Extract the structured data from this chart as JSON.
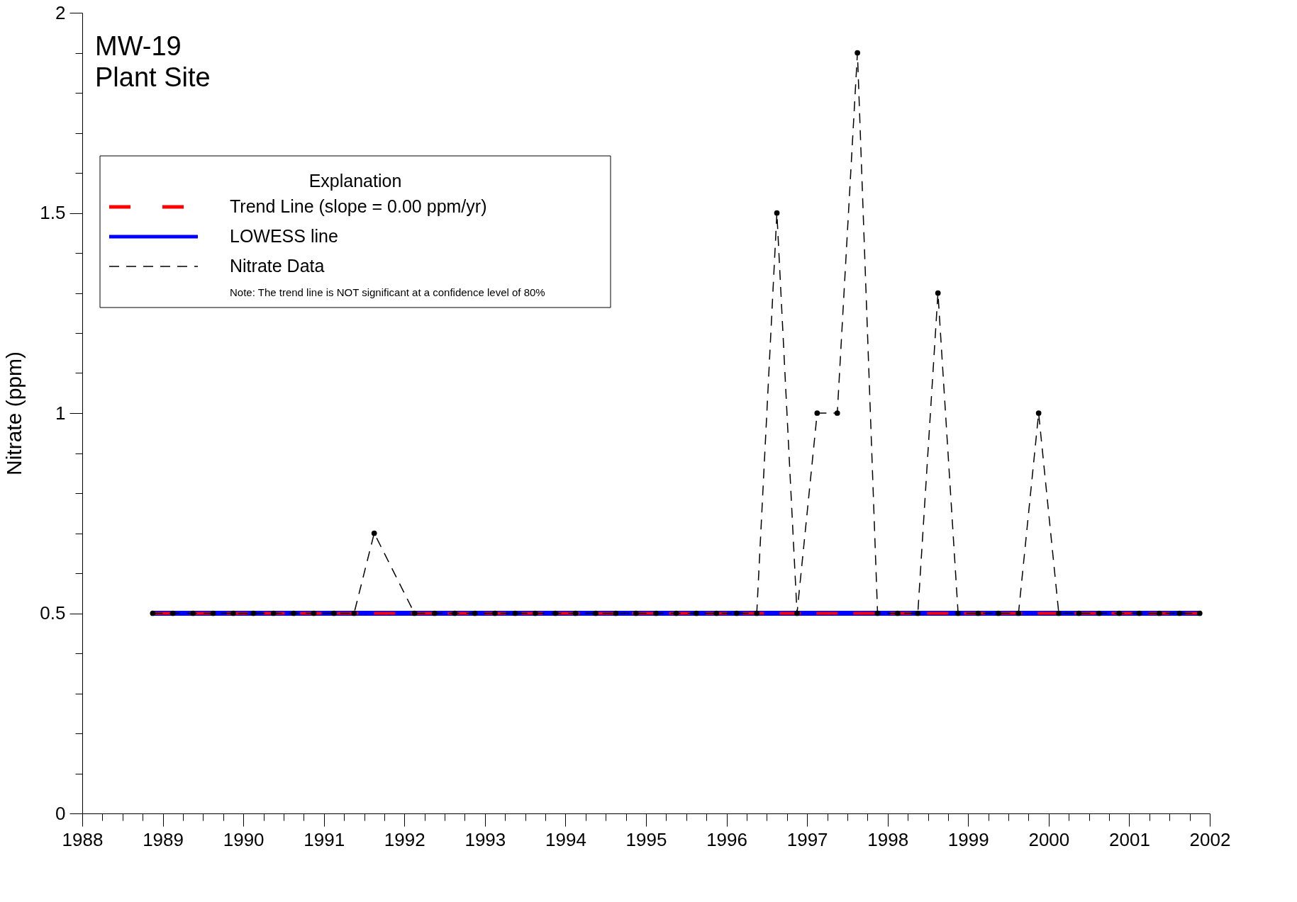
{
  "chart_data": {
    "type": "line",
    "title": "MW-19",
    "subtitle": "Plant Site",
    "ylabel": "Nitrate (ppm)",
    "legend_title": "Explanation",
    "annotations": [
      "Note: The trend line is NOT significant at a confidence level of 80%"
    ],
    "xlim": [
      1988,
      2002
    ],
    "ylim": [
      0,
      2
    ],
    "xticks": [
      1988,
      {
        "value": 1988.25,
        "label": null
      },
      {
        "value": 1988.5,
        "label": null
      },
      {
        "value": 1988.75,
        "label": null
      },
      1989,
      {
        "value": 1989.25,
        "label": null
      },
      {
        "value": 1989.5,
        "label": null
      },
      {
        "value": 1989.75,
        "label": null
      },
      1990,
      {
        "value": 1990.25,
        "label": null
      },
      {
        "value": 1990.5,
        "label": null
      },
      {
        "value": 1990.75,
        "label": null
      },
      1991,
      {
        "value": 1991.25,
        "label": null
      },
      {
        "value": 1991.5,
        "label": null
      },
      {
        "value": 1991.75,
        "label": null
      },
      1992,
      {
        "value": 1992.25,
        "label": null
      },
      {
        "value": 1992.5,
        "label": null
      },
      {
        "value": 1992.75,
        "label": null
      },
      1993,
      {
        "value": 1993.25,
        "label": null
      },
      {
        "value": 1993.5,
        "label": null
      },
      {
        "value": 1993.75,
        "label": null
      },
      1994,
      {
        "value": 1994.25,
        "label": null
      },
      {
        "value": 1994.5,
        "label": null
      },
      {
        "value": 1994.75,
        "label": null
      },
      1995,
      {
        "value": 1995.25,
        "label": null
      },
      {
        "value": 1995.5,
        "label": null
      },
      {
        "value": 1995.75,
        "label": null
      },
      1996,
      {
        "value": 1996.25,
        "label": null
      },
      {
        "value": 1996.5,
        "label": null
      },
      {
        "value": 1996.75,
        "label": null
      },
      1997,
      {
        "value": 1997.25,
        "label": null
      },
      {
        "value": 1997.5,
        "label": null
      },
      {
        "value": 1997.75,
        "label": null
      },
      1998,
      {
        "value": 1998.25,
        "label": null
      },
      {
        "value": 1998.5,
        "label": null
      },
      {
        "value": 1998.75,
        "label": null
      },
      1999,
      {
        "value": 1999.25,
        "label": null
      },
      {
        "value": 1999.5,
        "label": null
      },
      {
        "value": 1999.75,
        "label": null
      },
      2000,
      {
        "value": 2000.25,
        "label": null
      },
      {
        "value": 2000.5,
        "label": null
      },
      {
        "value": 2000.75,
        "label": null
      },
      2001,
      {
        "value": 2001.25,
        "label": null
      },
      {
        "value": 2001.5,
        "label": null
      },
      {
        "value": 2001.75,
        "label": null
      },
      2002
    ],
    "yticks": [
      0,
      {
        "value": 0.1,
        "label": null
      },
      {
        "value": 0.2,
        "label": null
      },
      {
        "value": 0.3,
        "label": null
      },
      {
        "value": 0.4,
        "label": null
      },
      0.5,
      {
        "value": 0.6,
        "label": null
      },
      {
        "value": 0.7,
        "label": null
      },
      {
        "value": 0.8,
        "label": null
      },
      {
        "value": 0.9,
        "label": null
      },
      1,
      {
        "value": 1.1,
        "label": null
      },
      {
        "value": 1.2,
        "label": null
      },
      {
        "value": 1.3,
        "label": null
      },
      {
        "value": 1.4,
        "label": null
      },
      1.5,
      {
        "value": 1.6,
        "label": null
      },
      {
        "value": 1.7,
        "label": null
      },
      {
        "value": 1.8,
        "label": null
      },
      {
        "value": 1.9,
        "label": null
      },
      2
    ],
    "grid": false,
    "legend": "top left",
    "series": [
      {
        "name": "LOWESS line",
        "color": "#0000ff",
        "line_style": "solid",
        "marker": "none",
        "x": [
          1988.875,
          2001.875
        ],
        "values": [
          0.5,
          0.5
        ]
      },
      {
        "name": "Trend Line (slope = 0.00 ppm/yr)",
        "color": "#ff0000",
        "line_style": "dashed",
        "marker": "none",
        "x": [
          1988.875,
          2001.875
        ],
        "values": [
          0.5,
          0.5
        ]
      },
      {
        "name": "Nitrate Data",
        "color": "#000000",
        "line_style": "dashed",
        "marker": "circle",
        "x": [
          1988.875,
          1989.125,
          1989.375,
          1989.625,
          1989.875,
          1990.125,
          1990.375,
          1990.625,
          1990.875,
          1991.125,
          1991.375,
          1991.625,
          1992.125,
          1992.375,
          1992.625,
          1992.875,
          1993.125,
          1993.375,
          1993.625,
          1993.875,
          1994.125,
          1994.375,
          1994.625,
          1994.875,
          1995.125,
          1995.375,
          1995.625,
          1995.875,
          1996.125,
          1996.375,
          1996.625,
          1996.875,
          1997.125,
          1997.375,
          1997.625,
          1997.875,
          1998.125,
          1998.375,
          1998.625,
          1998.875,
          1999.125,
          1999.375,
          1999.625,
          1999.875,
          2000.125,
          2000.375,
          2000.625,
          2000.875,
          2001.125,
          2001.375,
          2001.625,
          2001.875
        ],
        "values": [
          0.5,
          0.5,
          0.5,
          0.5,
          0.5,
          0.5,
          0.5,
          0.5,
          0.5,
          0.5,
          0.5,
          0.7,
          0.5,
          0.5,
          0.5,
          0.5,
          0.5,
          0.5,
          0.5,
          0.5,
          0.5,
          0.5,
          0.5,
          0.5,
          0.5,
          0.5,
          0.5,
          0.5,
          0.5,
          0.5,
          1.5,
          0.5,
          1.0,
          1.0,
          1.9,
          0.5,
          0.5,
          0.5,
          1.3,
          0.5,
          0.5,
          0.5,
          0.5,
          1.0,
          0.5,
          0.5,
          0.5,
          0.5,
          0.5,
          0.5,
          0.5,
          0.5
        ]
      }
    ]
  }
}
